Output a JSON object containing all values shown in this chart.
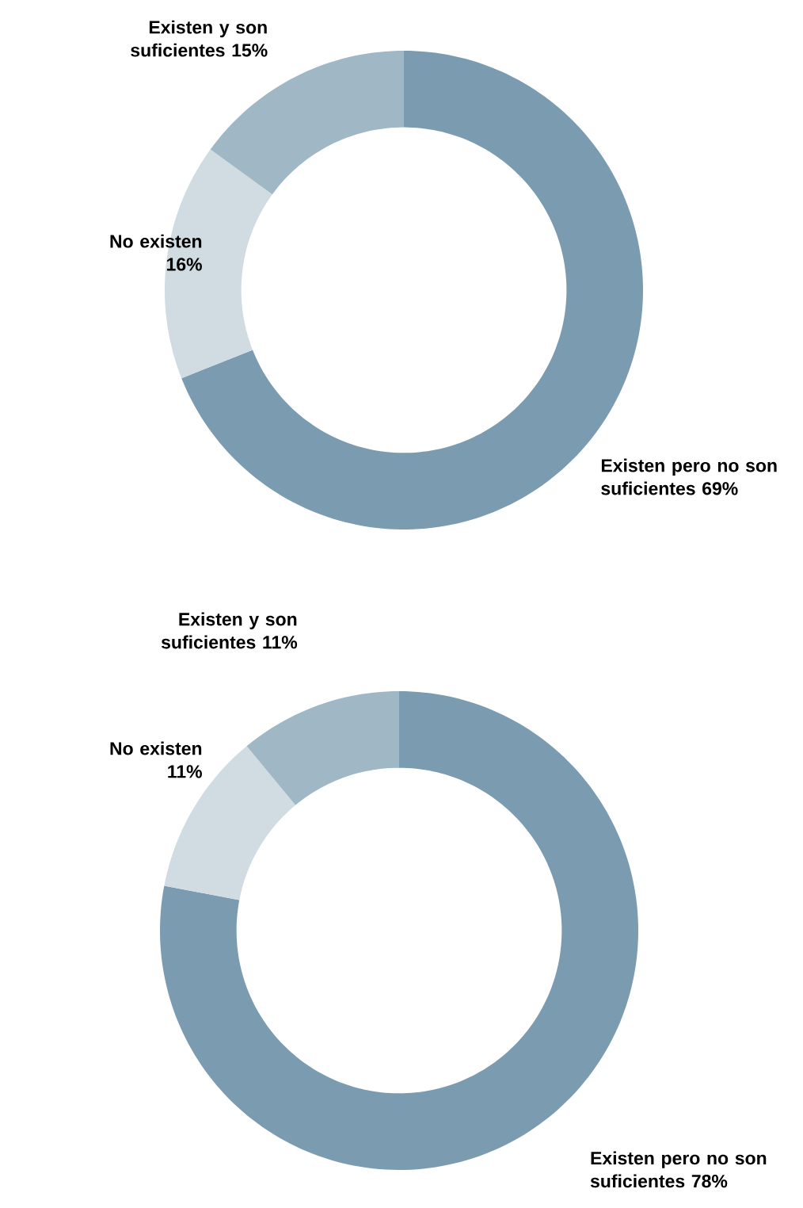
{
  "chart_data": [
    {
      "type": "donut",
      "categories": [
        "Existen pero no son suficientes",
        "No existen",
        "Existen y son suficientes"
      ],
      "values": [
        69,
        16,
        15
      ],
      "value_labels": [
        "69%",
        "16%",
        "15%"
      ],
      "colors": [
        "#7b9cb0",
        "#d0dce1",
        "#a0b7c5"
      ]
    },
    {
      "type": "donut",
      "categories": [
        "Existen pero no son suficientes",
        "No existen",
        "Existen y son suficientes"
      ],
      "values": [
        78,
        11,
        11
      ],
      "value_labels": [
        "78%",
        "11%",
        "11%"
      ],
      "colors": [
        "#7b9cb0",
        "#d0dce1",
        "#a0b7c5"
      ]
    }
  ]
}
